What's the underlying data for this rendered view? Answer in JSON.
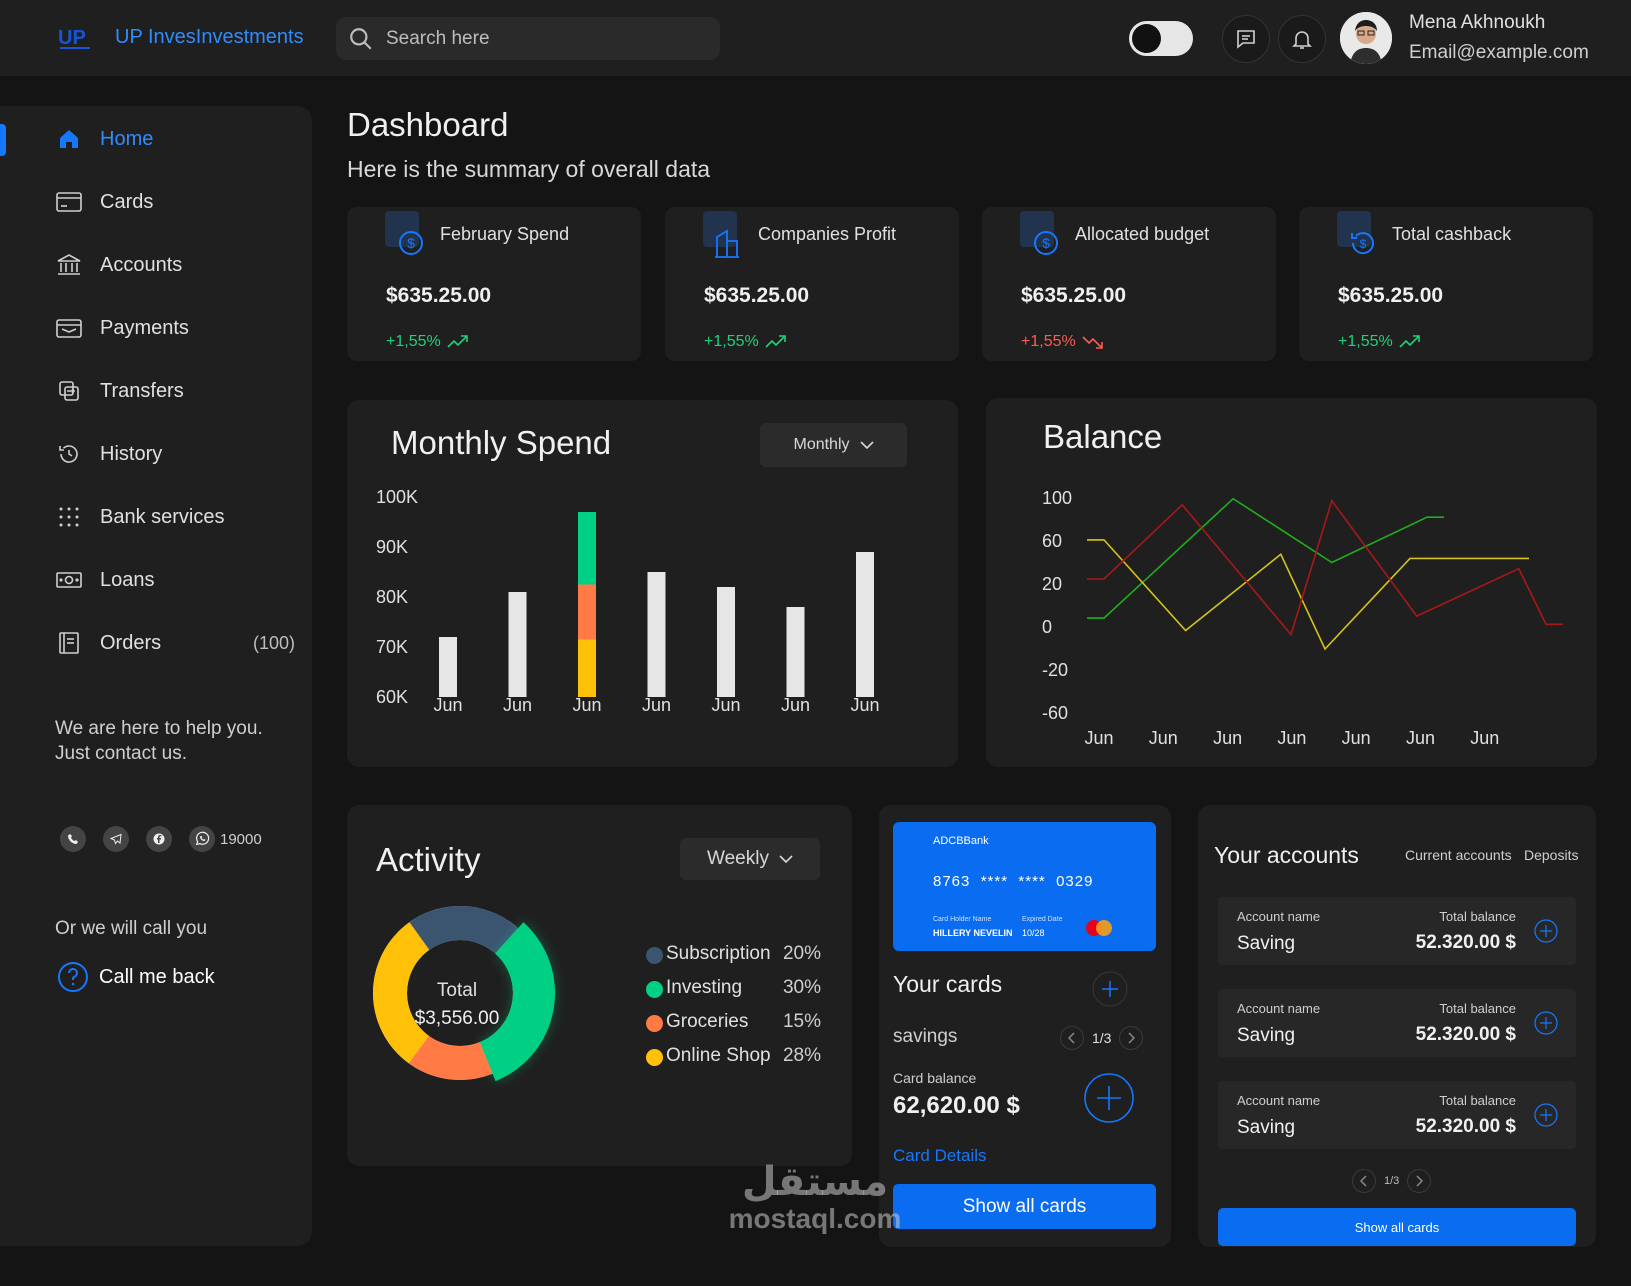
{
  "app": {
    "logo_text": "UP InvesInvestments",
    "logo_mark": "UP"
  },
  "search": {
    "placeholder": "Search here"
  },
  "user": {
    "name": "Mena Akhnoukh",
    "email": "Email@example.com"
  },
  "sidebar": {
    "items": [
      {
        "label": "Home",
        "icon": "home-icon",
        "active": true
      },
      {
        "label": "Cards",
        "icon": "card-icon"
      },
      {
        "label": "Accounts",
        "icon": "bank-icon"
      },
      {
        "label": "Payments",
        "icon": "wallet-icon"
      },
      {
        "label": "Transfers",
        "icon": "transfer-icon"
      },
      {
        "label": "History",
        "icon": "history-icon"
      },
      {
        "label": "Bank services",
        "icon": "grid-dots-icon"
      },
      {
        "label": "Loans",
        "icon": "money-icon"
      },
      {
        "label": "Orders",
        "icon": "orders-icon",
        "count": "(100)"
      }
    ],
    "help_text": "We are here to help you. Just contact us.",
    "hotline": "19000",
    "callback_hint": "Or we will call you",
    "callback_label": "Call me back"
  },
  "page": {
    "title": "Dashboard",
    "subtitle": "Here is the summary of overall data"
  },
  "stats": [
    {
      "title": "February Spend",
      "value": "$635.25.00",
      "change": "+1,55%",
      "trend": "up",
      "color": "#1fd17a"
    },
    {
      "title": "Companies Profit",
      "value": "$635.25.00",
      "change": "+1,55%",
      "trend": "up",
      "color": "#1fd17a"
    },
    {
      "title": "Allocated budget",
      "value": "$635.25.00",
      "change": "+1,55%",
      "trend": "down",
      "color": "#ff5a4f"
    },
    {
      "title": "Total cashback",
      "value": "$635.25.00",
      "change": "+1,55%",
      "trend": "up",
      "color": "#1fd17a"
    }
  ],
  "monthly_spend": {
    "title": "Monthly Spend",
    "filter": "Monthly"
  },
  "balance": {
    "title": "Balance"
  },
  "activity": {
    "title": "Activity",
    "filter": "Weekly",
    "total_label": "Total",
    "total_value": "$3,556.00",
    "legend": [
      {
        "label": "Subscription",
        "pct": "20%",
        "color": "#3b5570"
      },
      {
        "label": "Investing",
        "pct": "30%",
        "color": "#00d084"
      },
      {
        "label": "Groceries",
        "pct": "15%",
        "color": "#ff7a45"
      },
      {
        "label": "Online Shop",
        "pct": "28%",
        "color": "#ffc107"
      }
    ]
  },
  "cards": {
    "bank_name": "ADCBBank",
    "number": "8763  ****  ****  0329",
    "holder_label": "Card Holder Name",
    "holder": "HILLERY NEVELIN",
    "expiry_label": "Expired Date",
    "expiry": "10/28",
    "title": "Your cards",
    "type": "savings",
    "pager": "1/3",
    "balance_label": "Card balance",
    "balance": "62,620.00 $",
    "details_link": "Card Details",
    "show_all": "Show all cards"
  },
  "accounts": {
    "title": "Your accounts",
    "tabs": [
      "Current accounts",
      "Deposits"
    ],
    "rows": [
      {
        "name_label": "Account name",
        "name": "Saving",
        "balance_label": "Total balance",
        "balance": "52.320.00 $"
      },
      {
        "name_label": "Account name",
        "name": "Saving",
        "balance_label": "Total balance",
        "balance": "52.320.00 $"
      },
      {
        "name_label": "Account name",
        "name": "Saving",
        "balance_label": "Total balance",
        "balance": "52.320.00 $"
      }
    ],
    "pager": "1/3",
    "show_all": "Show all cards"
  },
  "watermark": {
    "arabic": "مستقل",
    "latin": "mostaql.com"
  },
  "chart_data": [
    {
      "type": "bar",
      "title": "Monthly Spend",
      "categories": [
        "Jun",
        "Jun",
        "Jun",
        "Jun",
        "Jun",
        "Jun",
        "Jun"
      ],
      "y_ticks": [
        "100K",
        "90K",
        "80K",
        "70K",
        "60K"
      ],
      "ylim": [
        60,
        100
      ],
      "values": [
        72,
        81,
        97,
        85,
        82,
        78,
        89
      ],
      "stacked_bar_index": 2,
      "stacked_segments": [
        {
          "name": "Online Shop",
          "value_top": 71.5,
          "color": "#ffc107"
        },
        {
          "name": "Groceries",
          "value_top": 82.5,
          "color": "#ff7a45"
        },
        {
          "name": "Investing",
          "value_top": 97,
          "color": "#00d084"
        }
      ],
      "bar_color": "#e6e6e6"
    },
    {
      "type": "line",
      "title": "Balance",
      "x": [
        "Jun",
        "Jun",
        "Jun",
        "Jun",
        "Jun",
        "Jun",
        "Jun"
      ],
      "y_ticks": [
        "100",
        "60",
        "20",
        "0",
        "-20",
        "-60"
      ],
      "series": [
        {
          "name": "green",
          "color": "#1fae1f",
          "points": [
            [
              0,
              0.31
            ],
            [
              0.05,
              0.31
            ],
            [
              0.43,
              0.89
            ],
            [
              0.72,
              0.58
            ],
            [
              1.0,
              0.8
            ],
            [
              1.05,
              0.8
            ]
          ]
        },
        {
          "name": "yellow",
          "color": "#d4c41a",
          "points": [
            [
              0,
              0.69
            ],
            [
              0.05,
              0.69
            ],
            [
              0.29,
              0.25
            ],
            [
              0.57,
              0.62
            ],
            [
              0.7,
              0.16
            ],
            [
              0.95,
              0.6
            ],
            [
              1.3,
              0.6
            ]
          ]
        },
        {
          "name": "red",
          "color": "#a81818",
          "points": [
            [
              0,
              0.5
            ],
            [
              0.05,
              0.5
            ],
            [
              0.28,
              0.86
            ],
            [
              0.6,
              0.23
            ],
            [
              0.72,
              0.88
            ],
            [
              0.97,
              0.32
            ],
            [
              1.27,
              0.55
            ],
            [
              1.35,
              0.28
            ],
            [
              1.4,
              0.28
            ]
          ]
        }
      ]
    },
    {
      "type": "pie",
      "title": "Activity",
      "slices": [
        {
          "label": "Subscription",
          "value": 20,
          "color": "#3b5570"
        },
        {
          "label": "Investing",
          "value": 30,
          "color": "#00d084"
        },
        {
          "label": "Groceries",
          "value": 15,
          "color": "#ff7a45"
        },
        {
          "label": "Online Shop",
          "value": 28,
          "color": "#ffc107"
        }
      ]
    }
  ]
}
